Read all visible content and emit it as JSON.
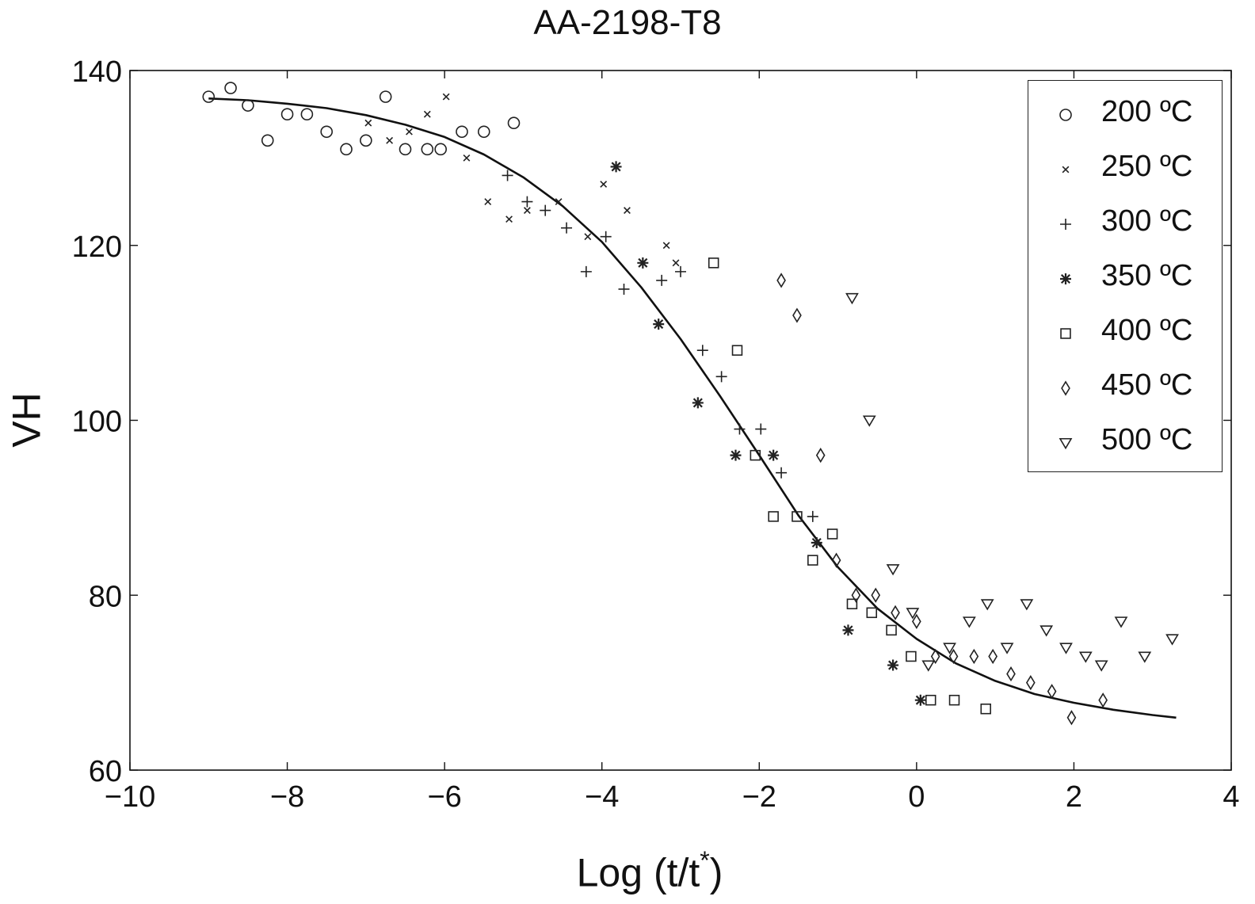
{
  "chart_data": {
    "type": "scatter",
    "title": "AA-2198-T8",
    "xlabel_main": "Log (t/t",
    "xlabel_sup": "*",
    "xlabel_end": ")",
    "ylabel": "VH",
    "xlim": [
      -10,
      4
    ],
    "ylim": [
      60,
      140
    ],
    "xticks": [
      -10,
      -8,
      -6,
      -4,
      -2,
      0,
      2,
      4
    ],
    "xtick_labels": [
      "−10",
      "−8",
      "−6",
      "−4",
      "−2",
      "0",
      "2",
      "4"
    ],
    "yticks": [
      60,
      80,
      100,
      120,
      140
    ],
    "ytick_labels": [
      "60",
      "80",
      "100",
      "120",
      "140"
    ],
    "grid": false,
    "legend_position": "top-right",
    "series": [
      {
        "name": "200 ºC",
        "marker": "circle",
        "points": [
          [
            -9.0,
            137
          ],
          [
            -8.72,
            138
          ],
          [
            -8.5,
            136
          ],
          [
            -8.25,
            132
          ],
          [
            -8.0,
            135
          ],
          [
            -7.75,
            135
          ],
          [
            -7.5,
            133
          ],
          [
            -7.25,
            131
          ],
          [
            -7.0,
            132
          ],
          [
            -6.75,
            137
          ],
          [
            -6.5,
            131
          ],
          [
            -6.22,
            131
          ],
          [
            -6.05,
            131
          ],
          [
            -5.78,
            133
          ],
          [
            -5.5,
            133
          ],
          [
            -5.12,
            134
          ]
        ]
      },
      {
        "name": "250 ºC",
        "marker": "x",
        "points": [
          [
            -6.97,
            134
          ],
          [
            -6.7,
            132
          ],
          [
            -6.45,
            133
          ],
          [
            -6.22,
            135
          ],
          [
            -5.98,
            137
          ],
          [
            -5.72,
            130
          ],
          [
            -5.45,
            125
          ],
          [
            -5.18,
            123
          ],
          [
            -4.95,
            124
          ],
          [
            -4.55,
            125
          ],
          [
            -4.18,
            121
          ],
          [
            -3.98,
            127
          ],
          [
            -3.68,
            124
          ],
          [
            -3.18,
            120
          ],
          [
            -3.06,
            118
          ]
        ]
      },
      {
        "name": "300 ºC",
        "marker": "plus",
        "points": [
          [
            -5.2,
            128
          ],
          [
            -4.95,
            125
          ],
          [
            -4.72,
            124
          ],
          [
            -4.45,
            122
          ],
          [
            -4.2,
            117
          ],
          [
            -3.95,
            121
          ],
          [
            -3.72,
            115
          ],
          [
            -3.24,
            116
          ],
          [
            -3.0,
            117
          ],
          [
            -2.72,
            108
          ],
          [
            -2.48,
            105
          ],
          [
            -2.25,
            99
          ],
          [
            -1.98,
            99
          ],
          [
            -1.72,
            94
          ],
          [
            -1.32,
            89
          ]
        ]
      },
      {
        "name": "350 ºC",
        "marker": "star",
        "points": [
          [
            -3.82,
            129
          ],
          [
            -3.48,
            118
          ],
          [
            -3.28,
            111
          ],
          [
            -2.78,
            102
          ],
          [
            -2.3,
            96
          ],
          [
            -1.82,
            96
          ],
          [
            -1.27,
            86
          ],
          [
            -0.87,
            76
          ],
          [
            -0.3,
            72
          ],
          [
            0.05,
            68
          ]
        ]
      },
      {
        "name": "400 ºC",
        "marker": "square",
        "points": [
          [
            -2.58,
            118
          ],
          [
            -2.28,
            108
          ],
          [
            -2.05,
            96
          ],
          [
            -1.82,
            89
          ],
          [
            -1.52,
            89
          ],
          [
            -1.32,
            84
          ],
          [
            -1.07,
            87
          ],
          [
            -0.82,
            79
          ],
          [
            -0.57,
            78
          ],
          [
            -0.32,
            76
          ],
          [
            -0.07,
            73
          ],
          [
            0.18,
            68
          ],
          [
            0.48,
            68
          ],
          [
            0.88,
            67
          ]
        ]
      },
      {
        "name": "450 ºC",
        "marker": "diamond",
        "points": [
          [
            -1.72,
            116
          ],
          [
            -1.52,
            112
          ],
          [
            -1.22,
            96
          ],
          [
            -1.02,
            84
          ],
          [
            -0.77,
            80
          ],
          [
            -0.52,
            80
          ],
          [
            -0.27,
            78
          ],
          [
            0.0,
            77
          ],
          [
            0.24,
            73
          ],
          [
            0.47,
            73
          ],
          [
            0.73,
            73
          ],
          [
            0.97,
            73
          ],
          [
            1.2,
            71
          ],
          [
            1.45,
            70
          ],
          [
            1.72,
            69
          ],
          [
            1.97,
            66
          ],
          [
            2.37,
            68
          ]
        ]
      },
      {
        "name": "500 ºC",
        "marker": "triangle-down",
        "points": [
          [
            -0.82,
            114
          ],
          [
            -0.6,
            100
          ],
          [
            -0.3,
            83
          ],
          [
            -0.05,
            78
          ],
          [
            0.15,
            72
          ],
          [
            0.42,
            74
          ],
          [
            0.67,
            77
          ],
          [
            0.9,
            79
          ],
          [
            1.15,
            74
          ],
          [
            1.4,
            79
          ],
          [
            1.65,
            76
          ],
          [
            1.9,
            74
          ],
          [
            2.15,
            73
          ],
          [
            2.35,
            72
          ],
          [
            2.6,
            77
          ],
          [
            2.9,
            73
          ],
          [
            3.25,
            75
          ]
        ]
      }
    ],
    "fit_curve": {
      "x": [
        -9.0,
        -8.5,
        -8.0,
        -7.5,
        -7.0,
        -6.5,
        -6.0,
        -5.5,
        -5.0,
        -4.5,
        -4.0,
        -3.5,
        -3.0,
        -2.5,
        -2.0,
        -1.5,
        -1.0,
        -0.5,
        0.0,
        0.5,
        1.0,
        1.5,
        2.0,
        2.5,
        3.0,
        3.3
      ],
      "y": [
        136.8,
        136.6,
        136.2,
        135.7,
        134.9,
        133.8,
        132.4,
        130.4,
        127.8,
        124.5,
        120.4,
        115.2,
        109.3,
        102.8,
        96.0,
        89.1,
        83.2,
        78.5,
        75.0,
        72.2,
        70.2,
        68.7,
        67.7,
        66.9,
        66.3,
        66.0
      ]
    }
  }
}
